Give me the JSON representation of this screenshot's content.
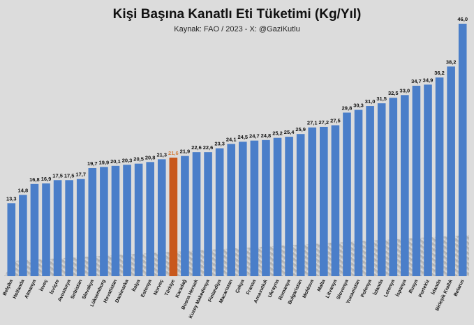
{
  "chart_data": {
    "type": "bar",
    "title": "Kişi Başına Kanatlı Eti Tüketimi (Kg/Yıl)",
    "subtitle": "Kaynak: FAO / 2023 - X: @GaziKutlu",
    "xlabel": "",
    "ylabel": "",
    "ylim": [
      0,
      46
    ],
    "grid": false,
    "colors": {
      "bar": "#4a7ec9",
      "highlight": "#c8581c",
      "label": "#111111",
      "highlight_label": "#d4803f"
    },
    "highlight_category": "Türkiye",
    "categories": [
      "Belçika",
      "Hollanda",
      "Almanya",
      "İsveç",
      "İsviçre",
      "Avusturya",
      "Sırbistan",
      "Slovakya",
      "Lüksemburg",
      "Hırvatistan",
      "Danimarka",
      "İtalya",
      "Estonya",
      "Norveç",
      "Türkiye",
      "Karadağ",
      "Bosna Hersek",
      "Kuzey Makedonya",
      "Finlandiya",
      "Macaristan",
      "Çekya",
      "Fransa",
      "Arnavutluk",
      "Ukrayna",
      "Romanya",
      "Bulgaristan",
      "Moldova",
      "Malta",
      "Litvanya",
      "Slovenya",
      "Yunanistan",
      "Polonya",
      "İzlanda",
      "Letonya",
      "İspanya",
      "Rusya",
      "Portekiz",
      "İrlanda",
      "Birleşik Krallık",
      "Belarus"
    ],
    "values": [
      13.3,
      14.8,
      16.8,
      16.9,
      17.5,
      17.5,
      17.7,
      19.7,
      19.9,
      20.1,
      20.3,
      20.5,
      20.8,
      21.3,
      21.6,
      21.9,
      22.6,
      22.6,
      23.3,
      24.1,
      24.5,
      24.7,
      24.8,
      25.2,
      25.4,
      25.9,
      27.1,
      27.2,
      27.5,
      29.8,
      30.3,
      31.0,
      31.5,
      32.5,
      33.0,
      34.7,
      34.9,
      36.2,
      38.2,
      46.0
    ],
    "value_labels": [
      "13,3",
      "14,8",
      "16,8",
      "16,9",
      "17,5",
      "17,5",
      "17,7",
      "19,7",
      "19,9",
      "20,1",
      "20,3",
      "20,5",
      "20,8",
      "21,3",
      "21,6",
      "21,9",
      "22,6",
      "22,6",
      "23,3",
      "24,1",
      "24,5",
      "24,7",
      "24,8",
      "25,2",
      "25,4",
      "25,9",
      "27,1",
      "27,2",
      "27,5",
      "29,8",
      "30,3",
      "31,0",
      "31,5",
      "32,5",
      "33,0",
      "34,7",
      "34,9",
      "36,2",
      "38,2",
      "46,0"
    ]
  }
}
